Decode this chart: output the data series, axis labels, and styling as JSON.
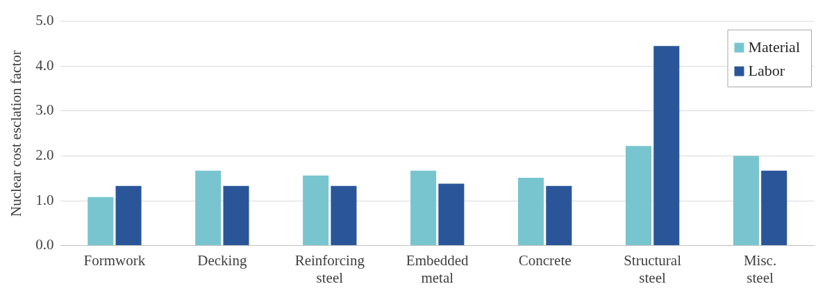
{
  "chart_data": {
    "type": "bar",
    "ylabel": "Nuclear cost esclation factor",
    "categories": [
      "Formwork",
      "Decking",
      "Reinforcing steel",
      "Embedded metal",
      "Concrete",
      "Structural steel",
      "Misc. steel"
    ],
    "series": [
      {
        "name": "Material",
        "color": "#78c5cf",
        "values": [
          1.08,
          1.67,
          1.56,
          1.67,
          1.51,
          2.22,
          2.0
        ]
      },
      {
        "name": "Labor",
        "color": "#2a5699",
        "values": [
          1.33,
          1.33,
          1.33,
          1.38,
          1.33,
          4.45,
          1.67
        ]
      }
    ],
    "ylim": [
      0,
      5
    ],
    "yticks": [
      {
        "value": 0,
        "label": "0.0"
      },
      {
        "value": 1,
        "label": "1.0"
      },
      {
        "value": 2,
        "label": "2.0"
      },
      {
        "value": 3,
        "label": "3.0"
      },
      {
        "value": 4,
        "label": "4.0"
      },
      {
        "value": 5,
        "label": "5.0"
      }
    ],
    "grid": "y",
    "legend": "top right"
  }
}
